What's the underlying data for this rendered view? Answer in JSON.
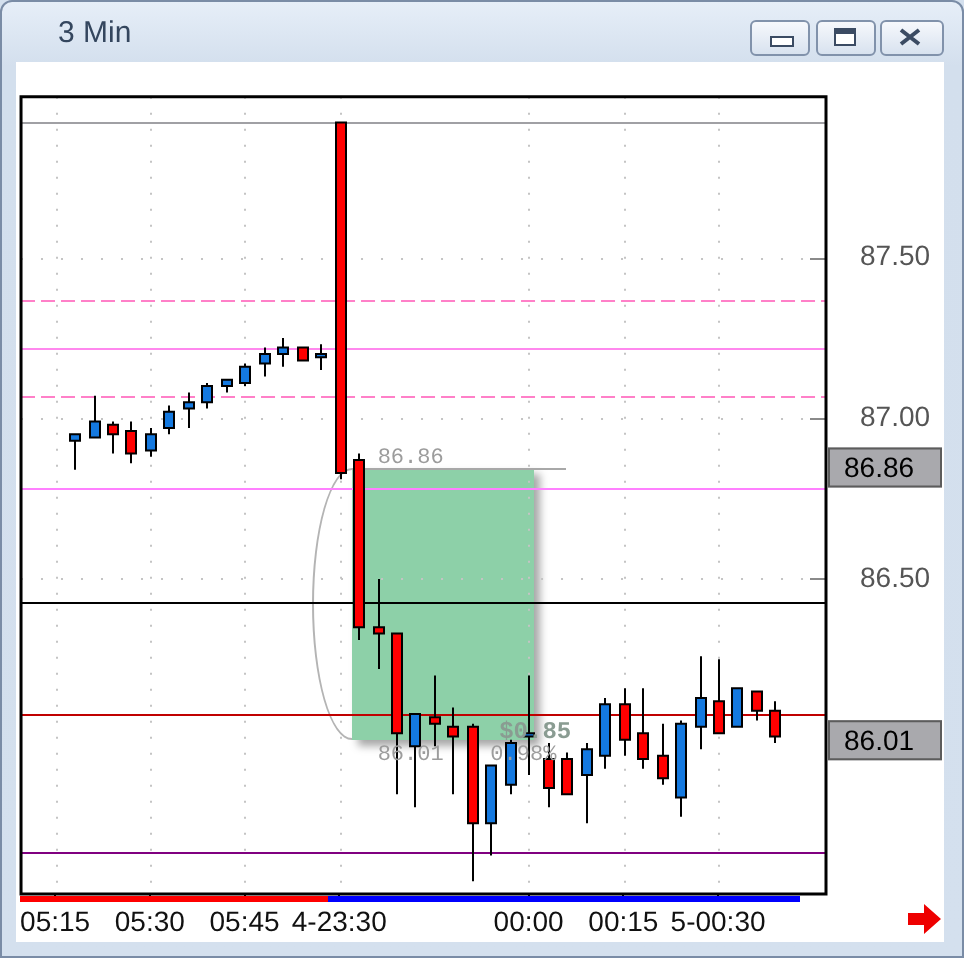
{
  "chart_data": {
    "type": "candlestick",
    "title": "3 Min",
    "categories": [
      "05:15",
      null,
      null,
      null,
      null,
      "05:30",
      null,
      null,
      null,
      null,
      "05:45",
      null,
      null,
      null,
      null,
      "4-23:30",
      null,
      null,
      null,
      null,
      null,
      null,
      null,
      null,
      null,
      "00:00",
      null,
      null,
      null,
      null,
      "00:15",
      null,
      null,
      null,
      null,
      "5-00:30",
      null,
      null,
      null
    ],
    "ohlc": [
      null,
      [
        86.93,
        86.95,
        86.84,
        86.95
      ],
      [
        86.94,
        87.07,
        86.94,
        86.99
      ],
      [
        86.98,
        86.99,
        86.89,
        86.95
      ],
      [
        86.96,
        86.99,
        86.86,
        86.89
      ],
      [
        86.9,
        86.97,
        86.88,
        86.95
      ],
      [
        86.97,
        87.04,
        86.95,
        87.02
      ],
      [
        87.03,
        87.08,
        86.97,
        87.05
      ],
      [
        87.05,
        87.11,
        87.03,
        87.1
      ],
      [
        87.1,
        87.12,
        87.08,
        87.12
      ],
      [
        87.11,
        87.17,
        87.1,
        87.16
      ],
      [
        87.17,
        87.22,
        87.13,
        87.2
      ],
      [
        87.2,
        87.25,
        87.16,
        87.22
      ],
      [
        87.22,
        87.22,
        87.18,
        87.18
      ],
      [
        87.19,
        87.23,
        87.15,
        87.2
      ],
      [
        87.92,
        87.92,
        86.81,
        86.83
      ],
      [
        86.87,
        86.89,
        86.31,
        86.35
      ],
      [
        86.35,
        86.5,
        86.22,
        86.33
      ],
      [
        86.33,
        86.33,
        85.83,
        86.02
      ],
      [
        85.98,
        86.08,
        85.79,
        86.08
      ],
      [
        86.07,
        86.2,
        85.98,
        86.05
      ],
      [
        86.04,
        86.1,
        85.83,
        86.01
      ],
      [
        86.04,
        86.05,
        85.56,
        85.74
      ],
      [
        85.74,
        85.92,
        85.64,
        85.92
      ],
      [
        85.86,
        86.0,
        85.83,
        85.99
      ],
      [
        86.01,
        86.2,
        85.89,
        86.02
      ],
      [
        85.94,
        85.99,
        85.79,
        85.85
      ],
      [
        85.94,
        85.96,
        85.83,
        85.83
      ],
      [
        85.89,
        85.99,
        85.74,
        85.97
      ],
      [
        85.95,
        86.13,
        85.91,
        86.11
      ],
      [
        86.11,
        86.16,
        85.95,
        86.0
      ],
      [
        86.02,
        86.16,
        85.91,
        85.94
      ],
      [
        85.95,
        86.05,
        85.86,
        85.88
      ],
      [
        85.82,
        86.06,
        85.76,
        86.05
      ],
      [
        86.04,
        86.26,
        85.97,
        86.13
      ],
      [
        86.12,
        86.25,
        86.02,
        86.02
      ],
      [
        86.04,
        86.16,
        86.04,
        86.16
      ],
      [
        86.15,
        86.15,
        86.06,
        86.09
      ],
      [
        86.09,
        86.12,
        85.99,
        86.01
      ]
    ],
    "colors": [
      null,
      "#1479e0",
      "#1479e0",
      "#ff0000",
      "#ff0000",
      "#1479e0",
      "#1479e0",
      "#1479e0",
      "#1479e0",
      "#1479e0",
      "#1479e0",
      "#1479e0",
      "#1479e0",
      "#ff0000",
      "#1479e0",
      "#ff0000",
      "#ff0000",
      "#ff0000",
      "#ff0000",
      "#1479e0",
      "#ff0000",
      "#ff0000",
      "#ff0000",
      "#1479e0",
      "#1479e0",
      "#1479e0",
      "#ff0000",
      "#ff0000",
      "#1479e0",
      "#1479e0",
      "#ff0000",
      "#ff0000",
      "#ff0000",
      "#1479e0",
      "#1479e0",
      "#ff0000",
      "#1479e0",
      "#ff0000",
      "#ff0000"
    ],
    "ylim": [
      85.52,
      88.0
    ],
    "yticks": [
      {
        "value": 86.5,
        "label": "86.50"
      },
      {
        "value": 87.0,
        "label": "87.00"
      },
      {
        "value": 87.5,
        "label": "87.50"
      }
    ],
    "grid": true,
    "ref_lines": [
      {
        "axis": "y",
        "value": 87.92,
        "color": "#a0a0a4"
      },
      {
        "axis": "y",
        "value": 87.37,
        "color": "#ff80c8",
        "line_style": "dashed"
      },
      {
        "axis": "y",
        "value": 87.22,
        "color": "#ff88ee"
      },
      {
        "axis": "y",
        "value": 87.07,
        "color": "#ff80c8",
        "line_style": "dashed"
      },
      {
        "axis": "y",
        "value": 86.78,
        "color": "#ff80ff"
      },
      {
        "axis": "y",
        "value": 86.43,
        "color": "#000000"
      },
      {
        "axis": "y",
        "value": 86.08,
        "color": "#c00000"
      },
      {
        "axis": "y",
        "value": 85.65,
        "color": "#800080"
      }
    ],
    "annotations": [
      "86.86",
      "86.01",
      "$0.85",
      "0.98%",
      "86.86",
      "86.01"
    ]
  }
}
